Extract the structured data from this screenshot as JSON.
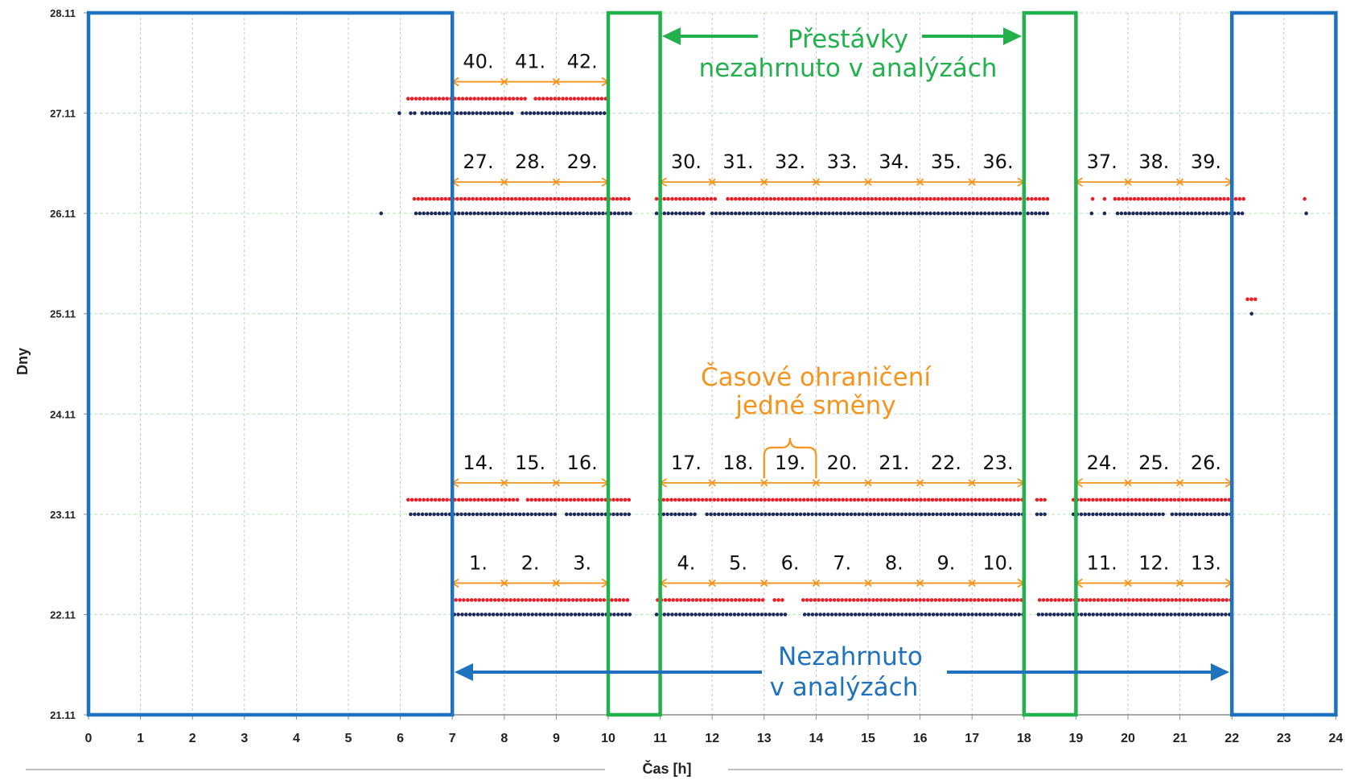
{
  "chart_data": {
    "type": "scatter",
    "title": "",
    "xlabel": "Čas [h]",
    "ylabel": "Dny",
    "xlim": [
      0,
      24
    ],
    "ylim": [
      "21.11",
      "28.11"
    ],
    "x_ticks": [
      "0",
      "1",
      "2",
      "3",
      "4",
      "5",
      "6",
      "7",
      "8",
      "9",
      "10",
      "11",
      "12",
      "13",
      "14",
      "15",
      "16",
      "17",
      "18",
      "19",
      "20",
      "21",
      "22",
      "23",
      "24"
    ],
    "y_ticks": [
      "21.11",
      "22.11",
      "23.11",
      "24.11",
      "25.11",
      "26.11",
      "27.11",
      "28.11"
    ],
    "grid": {
      "x": true,
      "y": true
    },
    "series": [
      {
        "color": "#ee1c25",
        "points_by_day": [
          {
            "day": "27.11",
            "hour_ranges": [
              [
                6.15,
                8.45
              ],
              [
                8.6,
                10.0
              ]
            ]
          },
          {
            "day": "26.11",
            "hour_ranges": [
              [
                6.27,
                10.42
              ],
              [
                10.93,
                12.1
              ],
              [
                12.3,
                18.5
              ],
              [
                19.32,
                19.32
              ],
              [
                19.55,
                19.55
              ],
              [
                19.75,
                22.27
              ],
              [
                23.4,
                23.47
              ]
            ]
          },
          {
            "day": "25.11",
            "hour_ranges": [
              [
                22.3,
                22.45
              ]
            ]
          },
          {
            "day": "23.11",
            "hour_ranges": [
              [
                6.15,
                8.3
              ],
              [
                8.45,
                10.45
              ],
              [
                10.99,
                18.0
              ],
              [
                18.25,
                18.45
              ],
              [
                18.95,
                22.0
              ]
            ]
          },
          {
            "day": "22.11",
            "hour_ranges": [
              [
                7.07,
                10.43
              ],
              [
                10.95,
                13.0
              ],
              [
                13.2,
                13.4
              ],
              [
                13.75,
                18.0
              ],
              [
                18.3,
                22.0
              ]
            ]
          }
        ]
      },
      {
        "color": "#1b2a5b",
        "points_by_day": [
          {
            "day": "27.11",
            "hour_ranges": [
              [
                5.98,
                5.98
              ],
              [
                6.2,
                6.3
              ],
              [
                6.42,
                8.2
              ],
              [
                8.35,
                10.0
              ]
            ]
          },
          {
            "day": "26.11",
            "hour_ranges": [
              [
                5.63,
                5.63
              ],
              [
                6.3,
                10.45
              ],
              [
                10.93,
                11.85
              ],
              [
                12.0,
                18.48
              ],
              [
                19.3,
                19.3
              ],
              [
                19.55,
                19.55
              ],
              [
                19.8,
                22.2
              ],
              [
                23.43,
                23.43
              ]
            ]
          },
          {
            "day": "25.11",
            "hour_ranges": [
              [
                22.38,
                22.38
              ]
            ]
          },
          {
            "day": "23.11",
            "hour_ranges": [
              [
                6.2,
                9.0
              ],
              [
                9.2,
                10.45
              ],
              [
                10.99,
                11.7
              ],
              [
                11.9,
                18.0
              ],
              [
                18.25,
                18.45
              ],
              [
                18.95,
                20.7
              ],
              [
                20.85,
                22.0
              ]
            ]
          },
          {
            "day": "22.11",
            "hour_ranges": [
              [
                7.04,
                10.43
              ],
              [
                10.93,
                13.45
              ],
              [
                13.78,
                18.0
              ],
              [
                18.28,
                22.0
              ]
            ]
          }
        ]
      }
    ]
  },
  "regions": {
    "excluded": {
      "color": "#1f73be",
      "hour_ranges": [
        [
          0,
          7
        ],
        [
          22,
          24
        ]
      ]
    },
    "breaks": {
      "color": "#22b14c",
      "hour_ranges": [
        [
          10,
          11
        ],
        [
          18,
          19
        ]
      ]
    }
  },
  "annotations": {
    "breaks_line1": "Přestávky",
    "breaks_line2": "nezahrnuto v analýzách",
    "excluded_line1": "Nezahrnuto",
    "excluded_line2": "v analýzách",
    "shift_line1": "Časové ohraničení",
    "shift_line2": "jedné směny"
  },
  "shift_boundaries": {
    "color": "#f7941d",
    "rows": [
      {
        "day": "27.11",
        "segments": [
          {
            "from": 7,
            "to": 10,
            "labels": [
              "40.",
              "41.",
              "42."
            ]
          }
        ]
      },
      {
        "day": "26.11",
        "segments": [
          {
            "from": 7,
            "to": 10,
            "labels": [
              "27.",
              "28.",
              "29."
            ]
          },
          {
            "from": 11,
            "to": 18,
            "labels": [
              "30.",
              "31.",
              "32.",
              "33.",
              "34.",
              "35.",
              "36."
            ]
          },
          {
            "from": 19,
            "to": 22,
            "labels": [
              "37.",
              "38.",
              "39."
            ]
          }
        ]
      },
      {
        "day": "23.11",
        "segments": [
          {
            "from": 7,
            "to": 10,
            "labels": [
              "14.",
              "15.",
              "16."
            ]
          },
          {
            "from": 11,
            "to": 18,
            "labels": [
              "17.",
              "18.",
              "19.",
              "20.",
              "21.",
              "22.",
              "23."
            ]
          },
          {
            "from": 19,
            "to": 22,
            "labels": [
              "24.",
              "25.",
              "26."
            ]
          }
        ]
      },
      {
        "day": "22.11",
        "segments": [
          {
            "from": 7,
            "to": 10,
            "labels": [
              "1.",
              "2.",
              "3."
            ]
          },
          {
            "from": 11,
            "to": 18,
            "labels": [
              "4.",
              "5.",
              "6.",
              "7.",
              "8.",
              "9.",
              "10."
            ]
          },
          {
            "from": 19,
            "to": 22,
            "labels": [
              "11.",
              "12.",
              "13."
            ]
          }
        ]
      }
    ]
  }
}
